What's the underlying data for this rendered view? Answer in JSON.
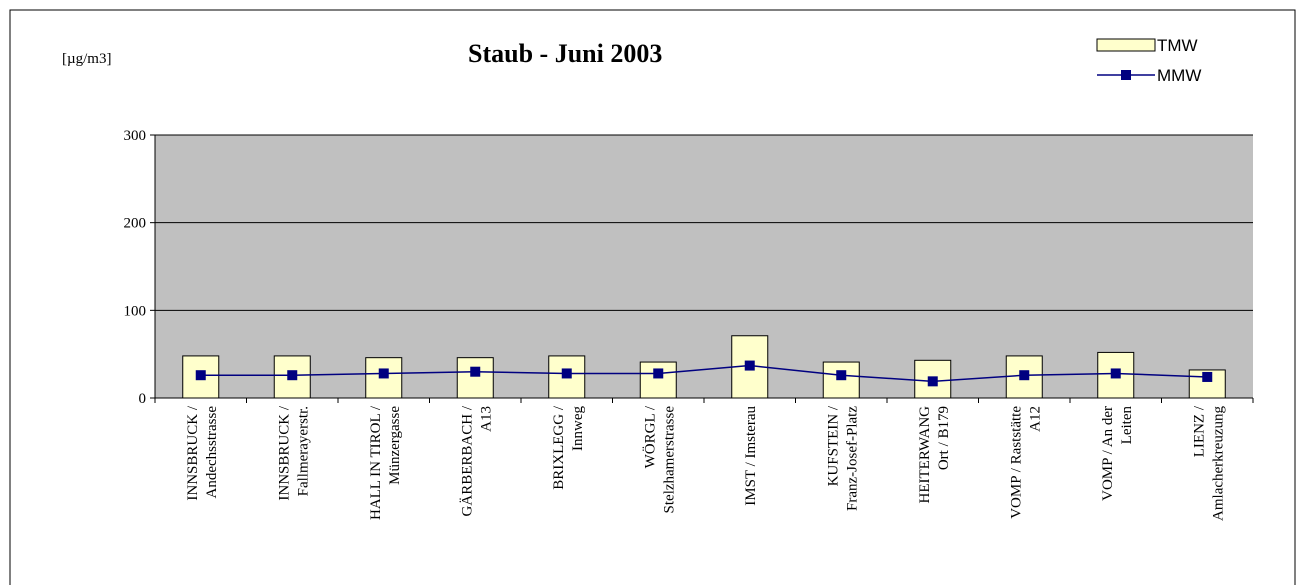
{
  "chart_data": {
    "type": "bar_line",
    "title": "Staub - Juni 2003",
    "unit_label": "[µg/m3]",
    "categories": [
      "INNSBRUCK /\nAndechsstrasse",
      "INNSBRUCK /\nFallmerayerstr.",
      "HALL IN TIROL /\nMünzergasse",
      "GÄRBERBACH /\nA13",
      "BRIXLEGG /\nInnweg",
      "WÖRGL /\nStelzhamerstrasse",
      "IMST / Imsterau",
      "KUFSTEIN /\nFranz-Josef-Platz",
      "HEITERWANG\nOrt / B179",
      "VOMP / Raststätte\nA12",
      "VOMP / An der\nLeiten",
      "LIENZ /\nAmlacherkreuzung"
    ],
    "series": [
      {
        "name": "TMW",
        "type": "bar",
        "color": "#ffffcc",
        "values": [
          48,
          48,
          46,
          46,
          48,
          41,
          71,
          41,
          43,
          48,
          52,
          32
        ]
      },
      {
        "name": "MMW",
        "type": "line",
        "color": "#000080",
        "values": [
          26,
          26,
          28,
          30,
          28,
          28,
          37,
          26,
          19,
          26,
          28,
          24
        ]
      }
    ],
    "ylim": [
      0,
      300
    ],
    "yticks": [
      0,
      100,
      200,
      300
    ],
    "grid": true,
    "plot_background": "#c0c0c0",
    "legend": "top-right"
  }
}
